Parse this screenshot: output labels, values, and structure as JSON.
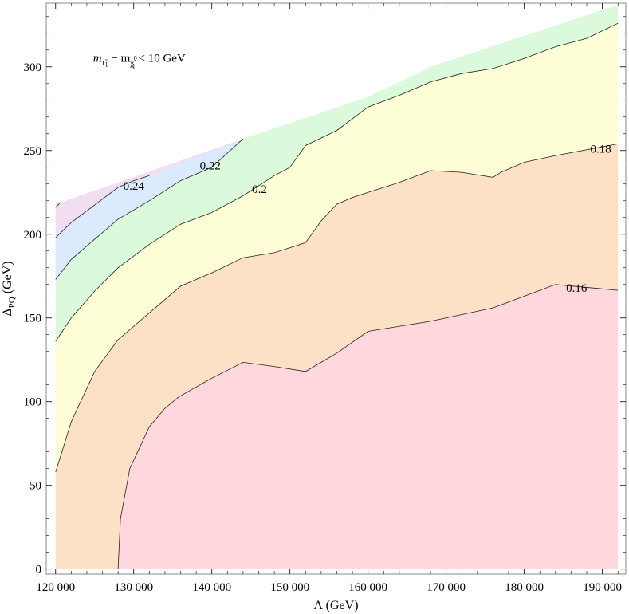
{
  "chart_data": {
    "type": "contour",
    "xlabel_main": "Λ",
    "xlabel_unit": "(GeV)",
    "ylabel_main": "Δ",
    "ylabel_sub": "PQ",
    "ylabel_unit": "(GeV)",
    "xlim": [
      118800,
      193000
    ],
    "ylim": [
      -3,
      338
    ],
    "x_ticks": [
      {
        "value": 120000,
        "label": "120 000"
      },
      {
        "value": 130000,
        "label": "130 000"
      },
      {
        "value": 140000,
        "label": "140 000"
      },
      {
        "value": 150000,
        "label": "150 000"
      },
      {
        "value": 160000,
        "label": "160 000"
      },
      {
        "value": 170000,
        "label": "170 000"
      },
      {
        "value": 180000,
        "label": "180 000"
      },
      {
        "value": 190000,
        "label": "190 000"
      }
    ],
    "y_ticks": [
      {
        "value": 0,
        "label": "0"
      },
      {
        "value": 50,
        "label": "50"
      },
      {
        "value": 100,
        "label": "100"
      },
      {
        "value": 150,
        "label": "150"
      },
      {
        "value": 200,
        "label": "200"
      },
      {
        "value": 250,
        "label": "250"
      },
      {
        "value": 300,
        "label": "300"
      }
    ],
    "annotation": {
      "parts": [
        "m",
        "τ̃",
        "1",
        " − m",
        "χ̃",
        "0",
        "1",
        " < 10 GeV"
      ],
      "x": 124800,
      "y": 303
    },
    "colors": {
      "pink": "#ffd7dc",
      "orange": "#fde1c6",
      "yellow": "#fdfdd6",
      "green": "#dbfadb",
      "blue": "#dbeafd",
      "purple": "#f1def1",
      "line": "#222222"
    },
    "domain_top": [
      [
        120000,
        218
      ],
      [
        144000,
        257
      ],
      [
        160000,
        282
      ],
      [
        168000,
        300
      ],
      [
        192000,
        337
      ]
    ],
    "contours": [
      {
        "level": "0.16",
        "label": "0.16",
        "label_at": [
          186700,
          168
        ],
        "points": [
          [
            128000,
            0
          ],
          [
            128300,
            30
          ],
          [
            129500,
            60
          ],
          [
            132000,
            85
          ],
          [
            134000,
            96
          ],
          [
            135800,
            103
          ],
          [
            140000,
            114
          ],
          [
            144000,
            123.5
          ],
          [
            148000,
            121
          ],
          [
            152000,
            118
          ],
          [
            156000,
            129
          ],
          [
            160000,
            142
          ],
          [
            168000,
            148
          ],
          [
            176000,
            156
          ],
          [
            184000,
            170
          ],
          [
            192000,
            166.5
          ]
        ]
      },
      {
        "level": "0.18",
        "label": "0.18",
        "label_at": [
          189800,
          251
        ],
        "points": [
          [
            120000,
            58
          ],
          [
            122000,
            88
          ],
          [
            125000,
            118
          ],
          [
            128000,
            137
          ],
          [
            132000,
            153
          ],
          [
            136000,
            169
          ],
          [
            140000,
            177
          ],
          [
            144000,
            186
          ],
          [
            148000,
            189
          ],
          [
            150000,
            192
          ],
          [
            152000,
            195
          ],
          [
            154000,
            208
          ],
          [
            156000,
            218
          ],
          [
            158000,
            222
          ],
          [
            160000,
            225
          ],
          [
            164000,
            231
          ],
          [
            168000,
            238
          ],
          [
            172000,
            237
          ],
          [
            176000,
            234
          ],
          [
            177000,
            237
          ],
          [
            180000,
            243
          ],
          [
            184000,
            247
          ],
          [
            192000,
            254
          ]
        ]
      },
      {
        "level": "0.2",
        "label": "0.2",
        "label_at": [
          146100,
          227
        ],
        "points": [
          [
            120000,
            136
          ],
          [
            122000,
            150
          ],
          [
            125000,
            166
          ],
          [
            128000,
            180
          ],
          [
            132000,
            194
          ],
          [
            136000,
            206
          ],
          [
            140000,
            213
          ],
          [
            144000,
            223
          ],
          [
            148000,
            235
          ],
          [
            150000,
            240
          ],
          [
            152000,
            253
          ],
          [
            156000,
            262
          ],
          [
            160000,
            276
          ],
          [
            164000,
            283
          ],
          [
            168000,
            291
          ],
          [
            172000,
            296
          ],
          [
            176000,
            299
          ],
          [
            180000,
            305
          ],
          [
            184000,
            312
          ],
          [
            188000,
            317
          ],
          [
            192000,
            326
          ]
        ]
      },
      {
        "level": "0.22",
        "label": "0.22",
        "label_at": [
          139800,
          241
        ],
        "points": [
          [
            120000,
            173
          ],
          [
            122000,
            185
          ],
          [
            125000,
            197
          ],
          [
            128000,
            209
          ],
          [
            132000,
            220
          ],
          [
            136000,
            232
          ],
          [
            138000,
            236
          ],
          [
            140000,
            240
          ],
          [
            144000,
            257
          ]
        ]
      },
      {
        "level": "0.24",
        "label": "0.24",
        "label_at": [
          130000,
          229
        ],
        "points": [
          [
            120000,
            198
          ],
          [
            122000,
            207
          ],
          [
            124000,
            214
          ],
          [
            126000,
            221
          ],
          [
            128000,
            228
          ],
          [
            130000,
            232
          ],
          [
            132000,
            235
          ]
        ]
      },
      {
        "level": "edge",
        "label": "",
        "points": [
          [
            120000,
            216
          ],
          [
            120600,
            219
          ]
        ]
      }
    ]
  }
}
